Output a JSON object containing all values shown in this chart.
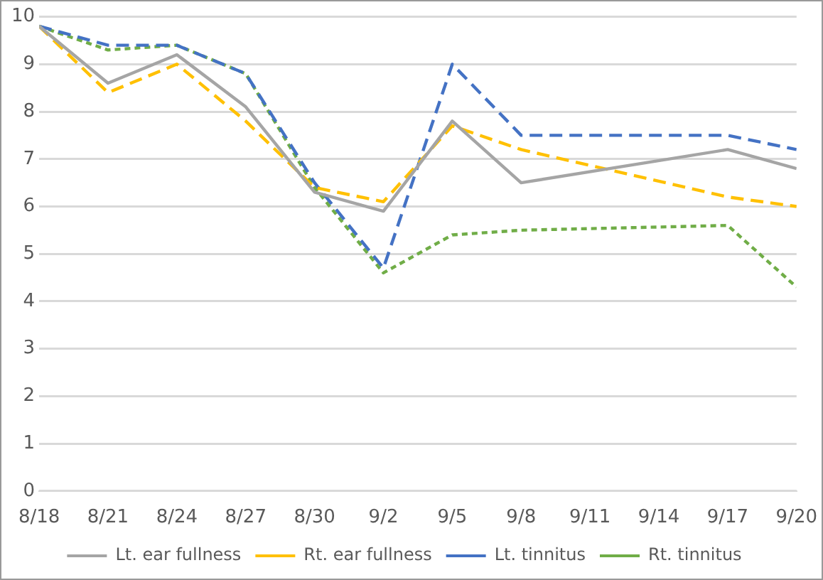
{
  "chart_data": {
    "type": "line",
    "x": [
      "--08-18",
      "--08-21",
      "--08-24",
      "--08-27",
      "--08-30",
      "--09-02",
      "--09-05",
      "--09-08",
      "--09-17",
      "--09-20"
    ],
    "xlim": [
      "--08-18",
      "--09-20"
    ],
    "xticks": [
      {
        "value": "--08-18",
        "label": "8/18"
      },
      {
        "value": "--08-21",
        "label": "8/21"
      },
      {
        "value": "--08-24",
        "label": "8/24"
      },
      {
        "value": "--08-27",
        "label": "8/27"
      },
      {
        "value": "--08-30",
        "label": "8/30"
      },
      {
        "value": "--09-02",
        "label": "9/2"
      },
      {
        "value": "--09-05",
        "label": "9/5"
      },
      {
        "value": "--09-08",
        "label": "9/8"
      },
      {
        "value": "--09-11",
        "label": "9/11"
      },
      {
        "value": "--09-14",
        "label": "9/14"
      },
      {
        "value": "--09-17",
        "label": "9/17"
      },
      {
        "value": "--09-20",
        "label": "9/20"
      }
    ],
    "ylim": [
      0,
      10
    ],
    "yticks": [
      0,
      1,
      2,
      3,
      4,
      5,
      6,
      7,
      8,
      9,
      10
    ],
    "grid": "y",
    "legend": "bottom",
    "marker": "none",
    "series": [
      {
        "name": "Lt. ear fullness",
        "color": "#a5a5a5",
        "line_style": "solid",
        "values": [
          9.8,
          8.6,
          9.2,
          8.1,
          6.3,
          5.9,
          7.8,
          6.5,
          7.2,
          6.8
        ]
      },
      {
        "name": "Rt. ear fullness",
        "color": "#ffc000",
        "line_style": "dashed",
        "values": [
          9.8,
          8.4,
          9.0,
          7.8,
          6.4,
          6.1,
          7.7,
          7.2,
          6.2,
          6.0
        ]
      },
      {
        "name": "Lt. tinnitus",
        "color": "#4472c4",
        "line_style": "dashed",
        "values": [
          9.8,
          9.4,
          9.4,
          8.8,
          6.5,
          4.7,
          9.0,
          7.5,
          7.5,
          7.2
        ]
      },
      {
        "name": "Rt. tinnitus",
        "color": "#70ad47",
        "line_style": "dotted",
        "values": [
          9.8,
          9.3,
          9.4,
          8.8,
          6.4,
          4.6,
          5.4,
          5.5,
          5.6,
          4.3
        ]
      }
    ]
  }
}
